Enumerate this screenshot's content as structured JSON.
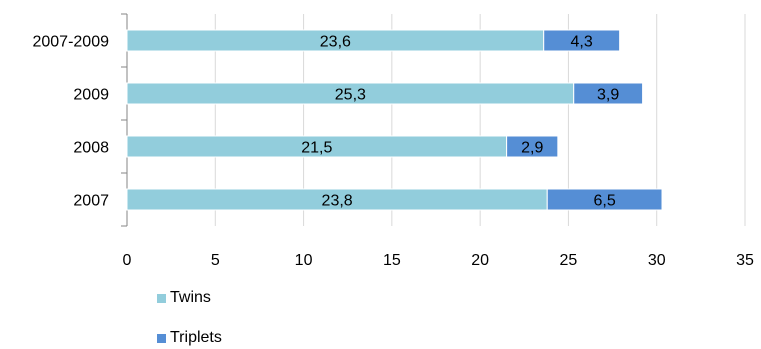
{
  "chart_data": {
    "type": "bar",
    "orientation": "horizontal",
    "stacked": true,
    "categories": [
      "2007",
      "2008",
      "2009",
      "2007-2009"
    ],
    "series": [
      {
        "name": "Twins",
        "values": [
          23.8,
          21.5,
          25.3,
          23.6
        ],
        "labels": [
          "23,8",
          "21,5",
          "25,3",
          "23,6"
        ],
        "color": "#92CDDC"
      },
      {
        "name": "Triplets",
        "values": [
          6.5,
          2.9,
          3.9,
          4.3
        ],
        "labels": [
          "6,5",
          "2,9",
          "3,9",
          "4,3"
        ],
        "color": "#558ED5"
      }
    ],
    "xticks": [
      "0",
      "5",
      "10",
      "15",
      "20",
      "25",
      "30",
      "35"
    ],
    "xlim": [
      0,
      35
    ],
    "grid": "vertical",
    "legend_position": "bottom-left",
    "title": "",
    "xlabel": "",
    "ylabel": ""
  }
}
